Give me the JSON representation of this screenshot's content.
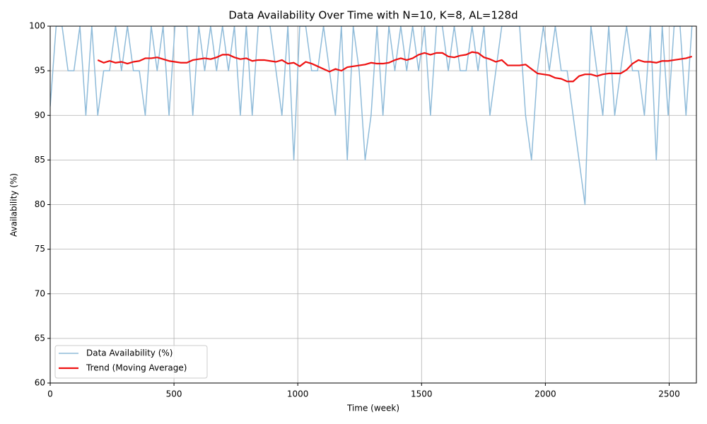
{
  "chart_data": {
    "type": "line",
    "title": "Data Availability Over Time with N=10, K=8, AL=128d",
    "x_label": "Time (week)",
    "y_label": "Availability (%)",
    "x": [
      0,
      24,
      48,
      72,
      96,
      120,
      144,
      168,
      192,
      216,
      240,
      264,
      288,
      312,
      336,
      360,
      384,
      408,
      432,
      456,
      480,
      504,
      528,
      552,
      576,
      600,
      624,
      648,
      672,
      696,
      720,
      744,
      768,
      792,
      816,
      840,
      864,
      888,
      912,
      936,
      960,
      984,
      1008,
      1032,
      1056,
      1080,
      1104,
      1128,
      1152,
      1176,
      1200,
      1224,
      1248,
      1272,
      1296,
      1320,
      1344,
      1368,
      1392,
      1416,
      1440,
      1464,
      1488,
      1512,
      1536,
      1560,
      1584,
      1608,
      1632,
      1656,
      1680,
      1704,
      1728,
      1752,
      1776,
      1800,
      1824,
      1848,
      1872,
      1896,
      1920,
      1944,
      1968,
      1992,
      2016,
      2040,
      2064,
      2088,
      2112,
      2136,
      2160,
      2184,
      2208,
      2232,
      2256,
      2280,
      2304,
      2328,
      2352,
      2376,
      2400,
      2424,
      2448,
      2472,
      2496,
      2520,
      2544,
      2568,
      2592
    ],
    "series": [
      {
        "name": "Data Availability (%)",
        "color": "#8fbbd9",
        "width": 1.5,
        "values": [
          91,
          100,
          100,
          95,
          95,
          100,
          90,
          100,
          90,
          95,
          95,
          100,
          95,
          100,
          95,
          95,
          90,
          100,
          95,
          100,
          90,
          100,
          100,
          100,
          90,
          100,
          95,
          100,
          95,
          100,
          95,
          100,
          90,
          100,
          90,
          100,
          100,
          100,
          95,
          90,
          100,
          85,
          100,
          100,
          95,
          95,
          100,
          95,
          90,
          100,
          85,
          100,
          95,
          85,
          90,
          100,
          90,
          100,
          95,
          100,
          95,
          100,
          95,
          100,
          90,
          100,
          100,
          95,
          100,
          95,
          95,
          100,
          95,
          100,
          90,
          95,
          100,
          100,
          100,
          100,
          90,
          85,
          95,
          100,
          95,
          100,
          95,
          95,
          90,
          85,
          80,
          100,
          95,
          90,
          100,
          90,
          95,
          100,
          95,
          95,
          90,
          100,
          85,
          100,
          90,
          100,
          100,
          90,
          100
        ]
      },
      {
        "name": "Trend (Moving Average)",
        "color": "#ee1111",
        "width": 2.2,
        "values": [
          null,
          null,
          null,
          null,
          null,
          null,
          null,
          null,
          96.2,
          95.9,
          96.1,
          95.9,
          96.0,
          95.8,
          96.0,
          96.1,
          96.4,
          96.4,
          96.5,
          96.3,
          96.1,
          96.0,
          95.9,
          95.9,
          96.2,
          96.3,
          96.4,
          96.3,
          96.5,
          96.8,
          96.8,
          96.5,
          96.3,
          96.4,
          96.1,
          96.2,
          96.2,
          96.1,
          96.0,
          96.2,
          95.8,
          95.9,
          95.5,
          96.0,
          95.8,
          95.5,
          95.2,
          94.9,
          95.2,
          95.0,
          95.4,
          95.5,
          95.6,
          95.7,
          95.9,
          95.8,
          95.8,
          95.9,
          96.2,
          96.4,
          96.2,
          96.4,
          96.8,
          97.0,
          96.8,
          97.0,
          97.0,
          96.6,
          96.5,
          96.7,
          96.8,
          97.1,
          97.0,
          96.5,
          96.3,
          96.0,
          96.2,
          95.6,
          95.6,
          95.6,
          95.7,
          95.2,
          94.7,
          94.6,
          94.5,
          94.2,
          94.1,
          93.8,
          93.8,
          94.4,
          94.6,
          94.6,
          94.4,
          94.6,
          94.7,
          94.7,
          94.7,
          95.1,
          95.8,
          96.2,
          96.0,
          96.0,
          95.9,
          96.1,
          96.1,
          96.2,
          96.3,
          96.4,
          96.6
        ]
      }
    ],
    "xlim": [
      0,
      2610
    ],
    "ylim": [
      60,
      100
    ],
    "xticks": [
      0,
      500,
      1000,
      1500,
      2000,
      2500
    ],
    "yticks": [
      60,
      65,
      70,
      75,
      80,
      85,
      90,
      95,
      100
    ],
    "grid": true,
    "legend": "lower left"
  }
}
